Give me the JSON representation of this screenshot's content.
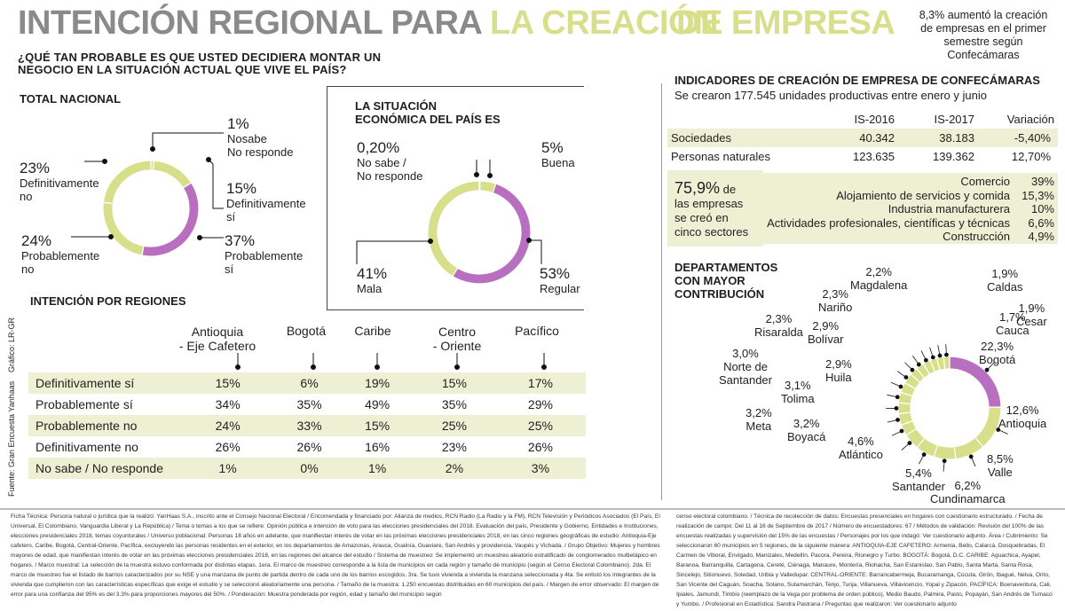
{
  "title": {
    "part1": "INTENCIÓN REGIONAL PARA ",
    "part2": "LA CREACIÓN",
    "part3": "DE EMPRESA"
  },
  "question": "¿QUÉ TAN PROBABLE ES QUE USTED DECIDIERA MONTAR UN NEGOCIO EN LA SITUACIÓN ACTUAL QUE VIVE EL PAÍS?",
  "top_note": "8,3% aumentó la creación de empresas en el primer semestre según Confecámaras",
  "national": {
    "heading": "TOTAL NACIONAL",
    "items": [
      {
        "pct": "1%",
        "label": "Nosabe\nNo responde"
      },
      {
        "pct": "15%",
        "label": "Definitivamente\nsí"
      },
      {
        "pct": "37%",
        "label": "Probablemente\nsí"
      },
      {
        "pct": "24%",
        "label": "Probablemente\nno"
      },
      {
        "pct": "23%",
        "label": "Definitivamente\nno"
      }
    ]
  },
  "economic": {
    "heading": "LA SITUACIÓN\nECONÓMICA DEL PAÍS ES",
    "items": [
      {
        "pct": "0,20%",
        "label": "No sabe /\nNo responde"
      },
      {
        "pct": "5%",
        "label": "Buena"
      },
      {
        "pct": "53%",
        "label": "Regular"
      },
      {
        "pct": "41%",
        "label": "Mala"
      }
    ]
  },
  "regions": {
    "heading": "INTENCIÓN POR REGIONES",
    "columns": [
      "Antioquia\n- Eje Cafetero",
      "Bogotá",
      "Caribe",
      "Centro\n- Oriente",
      "Pacífico"
    ],
    "rows": [
      {
        "label": "Definitivamente sí",
        "values": [
          "15%",
          "6%",
          "19%",
          "15%",
          "17%"
        ]
      },
      {
        "label": "Probablemente sí",
        "values": [
          "34%",
          "35%",
          "49%",
          "35%",
          "29%"
        ]
      },
      {
        "label": "Probablemente no",
        "values": [
          "24%",
          "33%",
          "15%",
          "25%",
          "25%"
        ]
      },
      {
        "label": "Definitivamente no",
        "values": [
          "26%",
          "26%",
          "16%",
          "23%",
          "26%"
        ]
      },
      {
        "label": "No sabe / No responde",
        "values": [
          "1%",
          "0%",
          "1%",
          "2%",
          "3%"
        ]
      }
    ]
  },
  "credit_graphic": "Gráfico: LR-GR",
  "credit_source": "Fuente: Gran Encuesta Yanhaas",
  "indicators": {
    "heading": "INDICADORES DE CREACIÓN DE EMPRESA DE CONFECÁMARAS",
    "subheading": "Se crearon 177.545 unidades productivas entre enero y junio",
    "columns": [
      "IS-2016",
      "IS-2017",
      "Variación"
    ],
    "rows": [
      {
        "label": "Sociedades",
        "values": [
          "40.342",
          "38.183",
          "-5,40%"
        ]
      },
      {
        "label": "Personas naturales",
        "values": [
          "123.635",
          "139.362",
          "12,70%"
        ]
      }
    ]
  },
  "sectors": {
    "highlight_pct": "75,9%",
    "highlight_text1": " de",
    "highlight_text2": "las empresas\nse creó en\ncinco sectores",
    "items": [
      {
        "label": "Comercio",
        "value": "39%"
      },
      {
        "label": "Alojamiento de servicios y comida",
        "value": "15,3%"
      },
      {
        "label": "Industria manufacturera",
        "value": "10%"
      },
      {
        "label": "Actividades profesionales, científicas y técnicas",
        "value": "6,6%"
      },
      {
        "label": "Construcción",
        "value": "4,9%"
      }
    ]
  },
  "departments": {
    "heading": "DEPARTAMENTOS\nCON MAYOR\nCONTRIBUCIÓN",
    "items": [
      {
        "pct": "22,3%",
        "label": "Bogotá"
      },
      {
        "pct": "12,6%",
        "label": "Antioquia"
      },
      {
        "pct": "8,5%",
        "label": "Valle"
      },
      {
        "pct": "6,2%",
        "label": "Cundinamarca"
      },
      {
        "pct": "5,4%",
        "label": "Santander"
      },
      {
        "pct": "4,6%",
        "label": "Atlántico"
      },
      {
        "pct": "3,2%",
        "label": "Boyacá"
      },
      {
        "pct": "3,2%",
        "label": "Meta"
      },
      {
        "pct": "3,1%",
        "label": "Tolima"
      },
      {
        "pct": "3,0%",
        "label": "Norte de\nSantander"
      },
      {
        "pct": "2,9%",
        "label": "Huila"
      },
      {
        "pct": "2,9%",
        "label": "Bolívar"
      },
      {
        "pct": "2,3%",
        "label": "Risaralda"
      },
      {
        "pct": "2,3%",
        "label": "Nariño"
      },
      {
        "pct": "2,2%",
        "label": "Magdalena"
      },
      {
        "pct": "1,9%",
        "label": "Caldas"
      },
      {
        "pct": "1,9%",
        "label": "Cesar"
      },
      {
        "pct": "1,7%",
        "label": "Cauca"
      }
    ]
  },
  "colors": {
    "green": "#d7df8a",
    "purple": "#b86fbf",
    "grey": "#8a8a8a",
    "shade": "#eef0d4"
  },
  "footer": {
    "left": "Ficha Técnica: Persona natural o jurídica que la realizó: YanHaas S.A., inscrito ante el Consejo Nacional Electoral / Encomendada y financiado por: Alianza de medios, RCN Radio (La Radio y la FM), RCN Televisión y Periódicos Asociados (El País, El Universal, El Colombiano, Vanguardia Liberal y La República) / Tema o temas a los que se refiere: Opinión pública e intención de voto para las elecciones presidenciales del 2018. Evaluación del país, Presidente y Gobierno, Entidades e Instituciones, elecciones presidenciales 2018, temas coyunturales / Universo poblacional: Personas 18 años en adelante, que manifiestan interés de votar en las próximas elecciones presidenciales 2018, en las cinco regiones geográficas de estudio: Antioquia-Eje cafetero, Caribe, Bogotá, Central-Oriente, Pacífica, excluyendo las personas residentes en el exterior, en los departamentos de Amazonas, Arauca, Guainía, Guaviare, San Andrés y providencia, Vaupés y Vichada. / Grupo Objetivo: Mujeres y hombres mayores de edad, que manifiestan interés de votar en las próximas elecciones presidenciales 2018, en las regiones del alcance del estudio / Sistema de muestreo: Se implementó un muestreo aleatorio estratificado de conglomerados multietápico en hogares. / Marco muestral: La selección de la muestra estuvo conformada por distintas etapas. 1era. El marco de muestreo corresponde a la lista de municipios en cada región y tamaño de municipio (según el Censo Electoral Colombiano). 2da. El marco de muestreo fue el listado de barrios caracterizados por su NSE y una manzana de punto de partida dentro de cada uno de los barrios escogidos. 3ra. Se tuvo vivienda a vivienda la manzana seleccionada y 4ta. Se enlistó los integrantes de la vivienda que cumplieron con las características específicas que exige el estudio y se seleccionó aleatoriamente una persona. / Tamaño de la muestra: 1.250 encuestas distribuidas en 60 municipios del país. / Margen de error observado: El margen de error para una confianza del 95% es del 3.3% para proporciones mayores del 50%. / Ponderación: Muestra ponderada por región, edad y tamaño del municipio según",
    "right": "censo electoral colombiano. / Técnica de recolección de datos: Encuestas presenciales en hogares con cuestionario estructurado. / Fecha de realización de campo: Del 11 al 16 de Septiembre de 2017 / Número de encuestadores: 67 / Métodos de validación: Revisión del 100% de las encuestas realizadas y supervisión del 15% de las encuestas / Personajes por los que indagó: Ver cuestionario adjunto. Área / Cubrimiento: Se seleccionaron 60 municipios en 5 regiones, de la siguiente manera: ANTIOQUIA-EJE CAFETERO: Armenia, Bello, Calarcá, Dosquebradas, El Carmen de Viboral, Envigado, Manizales, Medellín, Pacora, Pereira, Rionegro y Turbo. BOGOTÁ: Bogotá, D.C. CARIBE: Aguachica, Ayapel, Baranoa, Barranquilla, Cartagena, Cereté, Ciénaga, Manaure, Montería, Riohacha, San Estanislao, San Pablo, Santa Marta, Santa Rosa, Sincelejo, Sitionuevo, Soledad, Uribia y Valledupar. CENTRAL-ORIENTE: Barrancabermeja, Bucaramanga, Cúcuta, Girón, Ibagué, Neiva, Orito, San Vicente del Caguán, Soacha, Solano, Sutamarchán, Tenjo, Tunja, Villanueva, Villavicencio, Yopal y Zipacón. PACÍFICA: Buenaventura, Cali, Ipiales, Jamundí, Timbío (reemplazo de la Vega por problema de orden público), Medio Baudo, Palmira, Pasto, Popayán, San Andrés de Tumaco y Yumbo. / Profesional en Estadística: Sandra Pastrana / Preguntas que realizaron: Ver cuestionario adjunto"
  },
  "chart_data": [
    {
      "type": "pie",
      "title": "TOTAL NACIONAL",
      "categories": [
        "No sabe / No responde",
        "Definitivamente sí",
        "Probablemente sí",
        "Probablemente no",
        "Definitivamente no"
      ],
      "values": [
        1,
        15,
        37,
        24,
        23
      ]
    },
    {
      "type": "pie",
      "title": "LA SITUACIÓN ECONÓMICA DEL PAÍS ES",
      "categories": [
        "No sabe / No responde",
        "Buena",
        "Regular",
        "Mala"
      ],
      "values": [
        0.2,
        5,
        53,
        41
      ]
    },
    {
      "type": "table",
      "title": "INTENCIÓN POR REGIONES",
      "categories": [
        "Antioquia - Eje Cafetero",
        "Bogotá",
        "Caribe",
        "Centro - Oriente",
        "Pacífico"
      ],
      "series": [
        {
          "name": "Definitivamente sí",
          "values": [
            15,
            6,
            19,
            15,
            17
          ]
        },
        {
          "name": "Probablemente sí",
          "values": [
            34,
            35,
            49,
            35,
            29
          ]
        },
        {
          "name": "Probablemente no",
          "values": [
            24,
            33,
            15,
            25,
            25
          ]
        },
        {
          "name": "Definitivamente no",
          "values": [
            26,
            26,
            16,
            23,
            26
          ]
        },
        {
          "name": "No sabe / No responde",
          "values": [
            1,
            0,
            1,
            2,
            3
          ]
        }
      ]
    },
    {
      "type": "pie",
      "title": "DEPARTAMENTOS CON MAYOR CONTRIBUCIÓN",
      "categories": [
        "Bogotá",
        "Antioquia",
        "Valle",
        "Cundinamarca",
        "Santander",
        "Atlántico",
        "Boyacá",
        "Meta",
        "Tolima",
        "Norte de Santander",
        "Huila",
        "Bolívar",
        "Risaralda",
        "Nariño",
        "Magdalena",
        "Caldas",
        "Cesar",
        "Cauca"
      ],
      "values": [
        22.3,
        12.6,
        8.5,
        6.2,
        5.4,
        4.6,
        3.2,
        3.2,
        3.1,
        3.0,
        2.9,
        2.9,
        2.3,
        2.3,
        2.2,
        1.9,
        1.9,
        1.7
      ]
    }
  ]
}
